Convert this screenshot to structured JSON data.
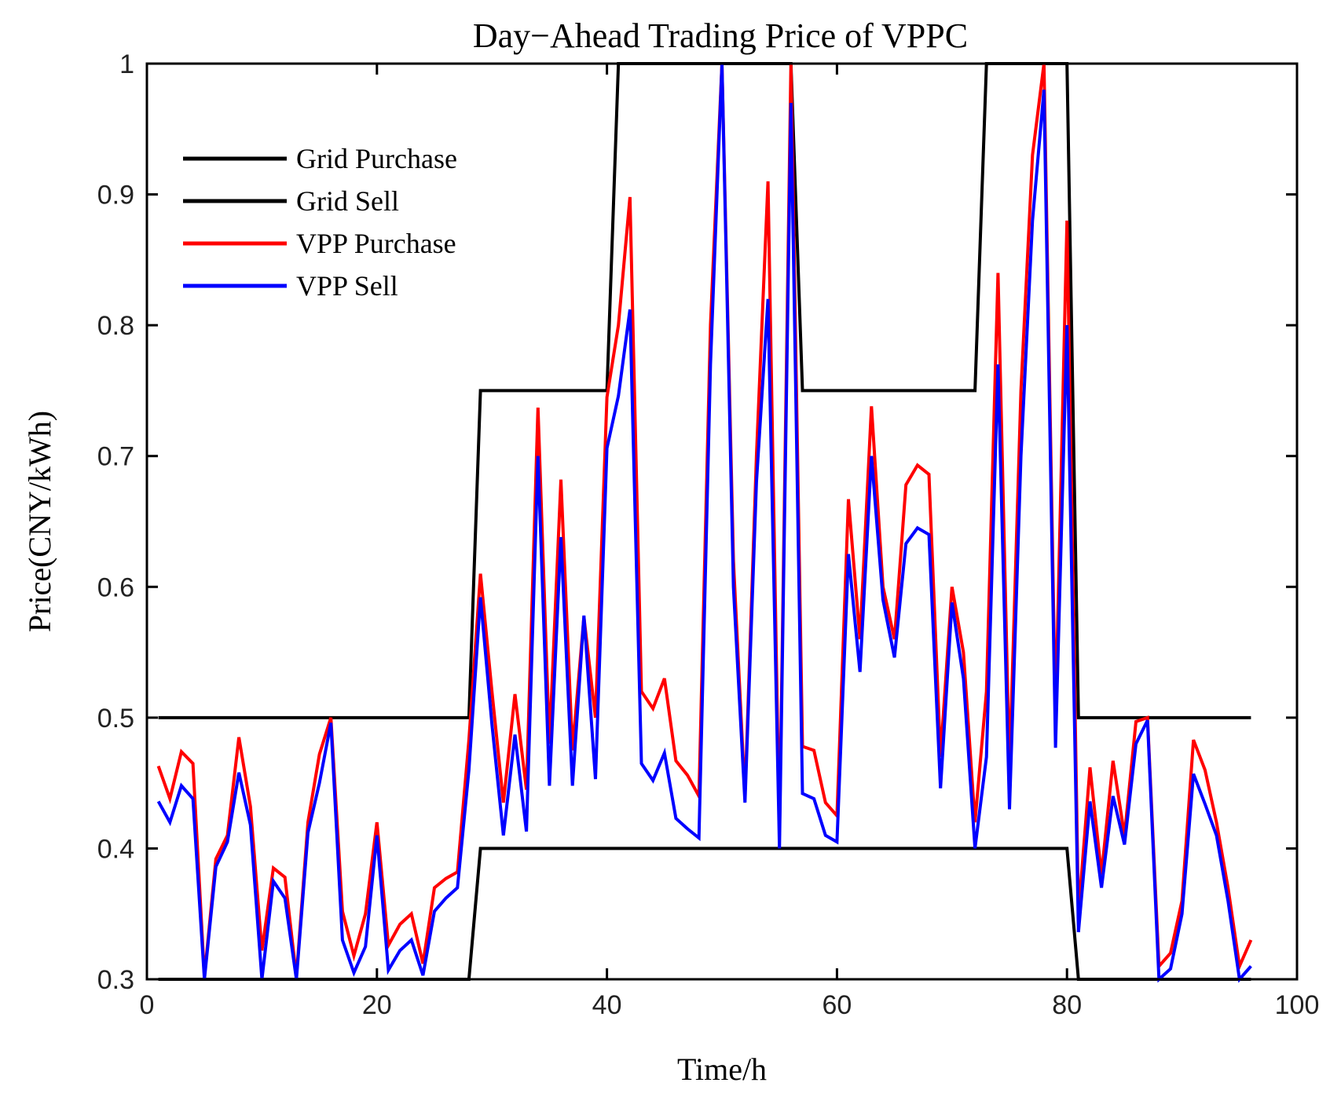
{
  "chart_data": {
    "type": "line",
    "title": "Day−Ahead Trading Price of VPPC",
    "xlabel": "Time/h",
    "ylabel": "Price(CNY/kWh)",
    "xlim": [
      0,
      100
    ],
    "ylim": [
      0.3,
      1
    ],
    "xticks": [
      0,
      20,
      40,
      60,
      80,
      100
    ],
    "yticks": [
      0.3,
      0.4,
      0.5,
      0.6,
      0.7,
      0.8,
      0.9,
      1
    ],
    "ytick_labels": [
      "0.3",
      "0.4",
      "0.5",
      "0.6",
      "0.7",
      "0.8",
      "0.9",
      "1"
    ],
    "grid": false,
    "legend_position": "top-left",
    "x": [
      1,
      2,
      3,
      4,
      5,
      6,
      7,
      8,
      9,
      10,
      11,
      12,
      13,
      14,
      15,
      16,
      17,
      18,
      19,
      20,
      21,
      22,
      23,
      24,
      25,
      26,
      27,
      28,
      29,
      30,
      31,
      32,
      33,
      34,
      35,
      36,
      37,
      38,
      39,
      40,
      41,
      42,
      43,
      44,
      45,
      46,
      47,
      48,
      49,
      50,
      51,
      52,
      53,
      54,
      55,
      56,
      57,
      58,
      59,
      60,
      61,
      62,
      63,
      64,
      65,
      66,
      67,
      68,
      69,
      70,
      71,
      72,
      73,
      74,
      75,
      76,
      77,
      78,
      79,
      80,
      81,
      82,
      83,
      84,
      85,
      86,
      87,
      88,
      89,
      90,
      91,
      92,
      93,
      94,
      95,
      96
    ],
    "series": [
      {
        "name": "Grid Purchase",
        "color": "#000000",
        "values": [
          0.5,
          0.5,
          0.5,
          0.5,
          0.5,
          0.5,
          0.5,
          0.5,
          0.5,
          0.5,
          0.5,
          0.5,
          0.5,
          0.5,
          0.5,
          0.5,
          0.5,
          0.5,
          0.5,
          0.5,
          0.5,
          0.5,
          0.5,
          0.5,
          0.5,
          0.5,
          0.5,
          0.5,
          0.75,
          0.75,
          0.75,
          0.75,
          0.75,
          0.75,
          0.75,
          0.75,
          0.75,
          0.75,
          0.75,
          0.75,
          1,
          1,
          1,
          1,
          1,
          1,
          1,
          1,
          1,
          1,
          1,
          1,
          1,
          1,
          1,
          1,
          0.75,
          0.75,
          0.75,
          0.75,
          0.75,
          0.75,
          0.75,
          0.75,
          0.75,
          0.75,
          0.75,
          0.75,
          0.75,
          0.75,
          0.75,
          0.75,
          1,
          1,
          1,
          1,
          1,
          1,
          1,
          1,
          0.5,
          0.5,
          0.5,
          0.5,
          0.5,
          0.5,
          0.5,
          0.5,
          0.5,
          0.5,
          0.5,
          0.5,
          0.5,
          0.5,
          0.5,
          0.5
        ]
      },
      {
        "name": "Grid Sell",
        "color": "#000000",
        "values": [
          0.3,
          0.3,
          0.3,
          0.3,
          0.3,
          0.3,
          0.3,
          0.3,
          0.3,
          0.3,
          0.3,
          0.3,
          0.3,
          0.3,
          0.3,
          0.3,
          0.3,
          0.3,
          0.3,
          0.3,
          0.3,
          0.3,
          0.3,
          0.3,
          0.3,
          0.3,
          0.3,
          0.3,
          0.4,
          0.4,
          0.4,
          0.4,
          0.4,
          0.4,
          0.4,
          0.4,
          0.4,
          0.4,
          0.4,
          0.4,
          0.4,
          0.4,
          0.4,
          0.4,
          0.4,
          0.4,
          0.4,
          0.4,
          0.4,
          0.4,
          0.4,
          0.4,
          0.4,
          0.4,
          0.4,
          0.4,
          0.4,
          0.4,
          0.4,
          0.4,
          0.4,
          0.4,
          0.4,
          0.4,
          0.4,
          0.4,
          0.4,
          0.4,
          0.4,
          0.4,
          0.4,
          0.4,
          0.4,
          0.4,
          0.4,
          0.4,
          0.4,
          0.4,
          0.4,
          0.4,
          0.3,
          0.3,
          0.3,
          0.3,
          0.3,
          0.3,
          0.3,
          0.3,
          0.3,
          0.3,
          0.3,
          0.3,
          0.3,
          0.3,
          0.3,
          0.3
        ]
      },
      {
        "name": "VPP Purchase",
        "color": "#ff0000",
        "values": [
          0.463,
          0.438,
          0.474,
          0.465,
          0.302,
          0.392,
          0.41,
          0.485,
          0.432,
          0.322,
          0.385,
          0.378,
          0.302,
          0.42,
          0.472,
          0.5,
          0.352,
          0.318,
          0.35,
          0.42,
          0.326,
          0.342,
          0.35,
          0.312,
          0.37,
          0.377,
          0.382,
          0.483,
          0.61,
          0.52,
          0.435,
          0.518,
          0.445,
          0.737,
          0.48,
          0.682,
          0.475,
          0.577,
          0.5,
          0.745,
          0.8,
          0.898,
          0.52,
          0.507,
          0.53,
          0.467,
          0.456,
          0.44,
          0.8,
          1.0,
          0.62,
          0.44,
          0.7,
          0.91,
          0.41,
          1.0,
          0.478,
          0.475,
          0.435,
          0.425,
          0.667,
          0.56,
          0.738,
          0.6,
          0.56,
          0.678,
          0.693,
          0.686,
          0.47,
          0.6,
          0.55,
          0.42,
          0.52,
          0.84,
          0.46,
          0.75,
          0.93,
          1.0,
          0.5,
          0.88,
          0.35,
          0.462,
          0.38,
          0.467,
          0.41,
          0.497,
          0.5,
          0.31,
          0.32,
          0.36,
          0.483,
          0.46,
          0.42,
          0.37,
          0.31,
          0.33
        ]
      },
      {
        "name": "VPP Sell",
        "color": "#0000ff",
        "values": [
          0.436,
          0.42,
          0.448,
          0.438,
          0.3,
          0.386,
          0.405,
          0.458,
          0.418,
          0.3,
          0.375,
          0.362,
          0.3,
          0.412,
          0.45,
          0.496,
          0.33,
          0.305,
          0.325,
          0.41,
          0.307,
          0.322,
          0.33,
          0.303,
          0.352,
          0.362,
          0.37,
          0.46,
          0.592,
          0.495,
          0.41,
          0.487,
          0.413,
          0.7,
          0.448,
          0.638,
          0.448,
          0.578,
          0.453,
          0.706,
          0.746,
          0.812,
          0.465,
          0.452,
          0.473,
          0.423,
          0.415,
          0.408,
          0.77,
          1.0,
          0.6,
          0.435,
          0.68,
          0.82,
          0.4,
          0.97,
          0.442,
          0.438,
          0.41,
          0.405,
          0.625,
          0.535,
          0.7,
          0.59,
          0.546,
          0.633,
          0.645,
          0.64,
          0.446,
          0.588,
          0.53,
          0.4,
          0.47,
          0.77,
          0.43,
          0.7,
          0.88,
          0.98,
          0.477,
          0.8,
          0.336,
          0.436,
          0.37,
          0.44,
          0.403,
          0.48,
          0.498,
          0.3,
          0.308,
          0.35,
          0.457,
          0.434,
          0.41,
          0.36,
          0.3,
          0.31
        ]
      }
    ]
  }
}
